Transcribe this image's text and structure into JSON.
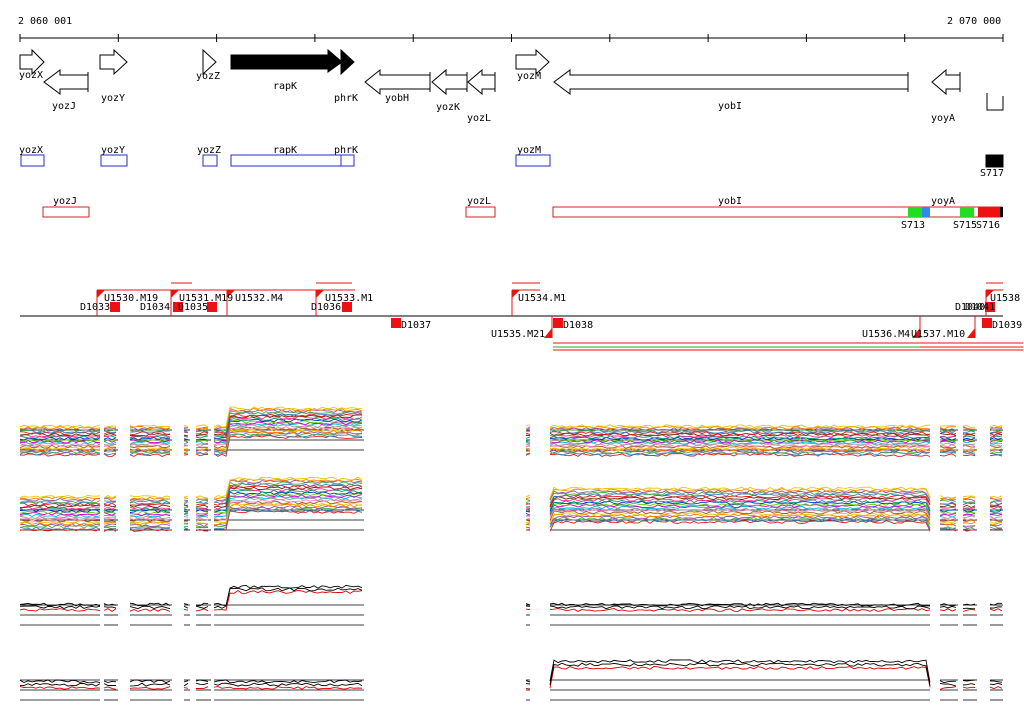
{
  "ruler": {
    "start_label": "2 060 001",
    "end_label": "2 070 000"
  },
  "genes": [
    {
      "name": "yozX",
      "strand": "+",
      "fill": "open"
    },
    {
      "name": "yozJ",
      "strand": "-",
      "fill": "open"
    },
    {
      "name": "yozY",
      "strand": "+",
      "fill": "open"
    },
    {
      "name": "yozZ",
      "strand": "+",
      "fill": "open"
    },
    {
      "name": "rapK",
      "strand": "+",
      "fill": "solid"
    },
    {
      "name": "phrK",
      "strand": "+",
      "fill": "solid"
    },
    {
      "name": "yobH",
      "strand": "-",
      "fill": "open"
    },
    {
      "name": "yozK",
      "strand": "-",
      "fill": "open"
    },
    {
      "name": "yozL",
      "strand": "-",
      "fill": "open"
    },
    {
      "name": "yozM",
      "strand": "+",
      "fill": "open"
    },
    {
      "name": "yobI",
      "strand": "-",
      "fill": "open"
    },
    {
      "name": "yoyA",
      "strand": "-",
      "fill": "open"
    }
  ],
  "plus_track": [
    "yozX",
    "yozY",
    "yozZ",
    "rapK",
    "phrK",
    "yozM",
    "S717"
  ],
  "minus_track": [
    "yozJ",
    "yozL",
    "yobI",
    "yoyA",
    "S713",
    "S715",
    "S716"
  ],
  "segments": {
    "upper": [
      "U1530.M19",
      "U1531.M19",
      "U1532.M4",
      "U1533.M1",
      "U1534.M1",
      "U1538"
    ],
    "upper_down": [
      "D1033",
      "D1034",
      "D1035",
      "D1036",
      "D1040",
      "D1041"
    ],
    "lower": [
      "D1037",
      "D1038",
      "U1535.M21",
      "U1536.M4",
      "U1537.M10",
      "D1039"
    ]
  },
  "colors": {
    "plus_box": "#1f2fbf",
    "minus_box": "#d62020",
    "segment": "#ee1111",
    "green": "#22dd22",
    "blue": "#3388ee",
    "black": "#000000"
  }
}
